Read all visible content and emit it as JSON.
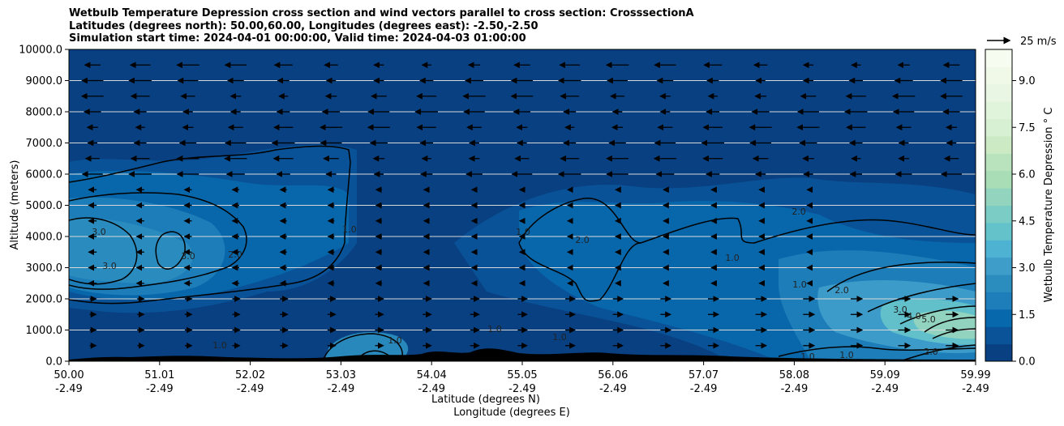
{
  "chart_data": {
    "type": "contourf",
    "title_lines": [
      "Wetbulb Temperature Depression cross section and wind vectors parallel to cross section: CrosssectionA",
      "Latitudes (degrees north): 50.00,60.00, Longitudes (degrees east): -2.50,-2.50",
      "Simulation start time: 2024-04-01 00:00:00, Valid time: 2024-04-03 01:00:00"
    ],
    "xlabel_lines": [
      "Latitude (degrees N)",
      "Longitude (degrees E)"
    ],
    "ylabel": "Altitude (meters)",
    "ylim": [
      0,
      10000
    ],
    "yticks": [
      "0.0",
      "1000.0",
      "2000.0",
      "3000.0",
      "4000.0",
      "5000.0",
      "6000.0",
      "7000.0",
      "8000.0",
      "9000.0",
      "10000.0"
    ],
    "xticks": [
      {
        "lat": "50.00",
        "lon": "-2.49"
      },
      {
        "lat": "51.01",
        "lon": "-2.49"
      },
      {
        "lat": "52.02",
        "lon": "-2.49"
      },
      {
        "lat": "53.03",
        "lon": "-2.49"
      },
      {
        "lat": "54.04",
        "lon": "-2.49"
      },
      {
        "lat": "55.05",
        "lon": "-2.49"
      },
      {
        "lat": "56.06",
        "lon": "-2.49"
      },
      {
        "lat": "57.07",
        "lon": "-2.49"
      },
      {
        "lat": "58.08",
        "lon": "-2.49"
      },
      {
        "lat": "59.09",
        "lon": "-2.49"
      },
      {
        "lat": "59.99",
        "lon": "-2.49"
      }
    ],
    "colorbar": {
      "label": "Wetbulb Temperature Depression $^\\circ$C",
      "min": 0,
      "max": 10,
      "ticks": [
        "0.0",
        "1.5",
        "3.0",
        "4.5",
        "6.0",
        "7.5",
        "9.0"
      ],
      "colors": [
        "#084081",
        "#0a5398",
        "#0868ac",
        "#1d7eb9",
        "#2b8cbe",
        "#3e9dc9",
        "#4eb3d3",
        "#63c2ca",
        "#7bccc4",
        "#93d4be",
        "#a8ddb5",
        "#b8e3bd",
        "#ccebc5",
        "#d7efd2",
        "#e0f3db",
        "#e9f6e3",
        "#f0f9e8",
        "#f7fcf0"
      ]
    },
    "quiver_key": {
      "label": "25 m/s",
      "speed_ms": 25
    },
    "contour_labels": [
      "3.0",
      "3.0",
      "3.0",
      "2.0",
      "1.0",
      "1.0",
      "2.0",
      "1.0",
      "1.0",
      "1.0",
      "1.0",
      "2.0",
      "1.0",
      "1.0",
      "2.0",
      "3.0",
      "4.0",
      "5.0",
      "1.0",
      "1.0",
      "2.0"
    ],
    "wind_rows_m": [
      9500,
      9000,
      8500,
      8000,
      7500,
      7000,
      6500,
      6000,
      5500,
      5000,
      4500,
      4000,
      3500,
      3000,
      2500,
      2000,
      1500,
      1000,
      500
    ],
    "wind_note_ms": {
      "upper_westward_speed": 18,
      "lower_eastward_speed": 10
    },
    "grid": "horizontal"
  }
}
